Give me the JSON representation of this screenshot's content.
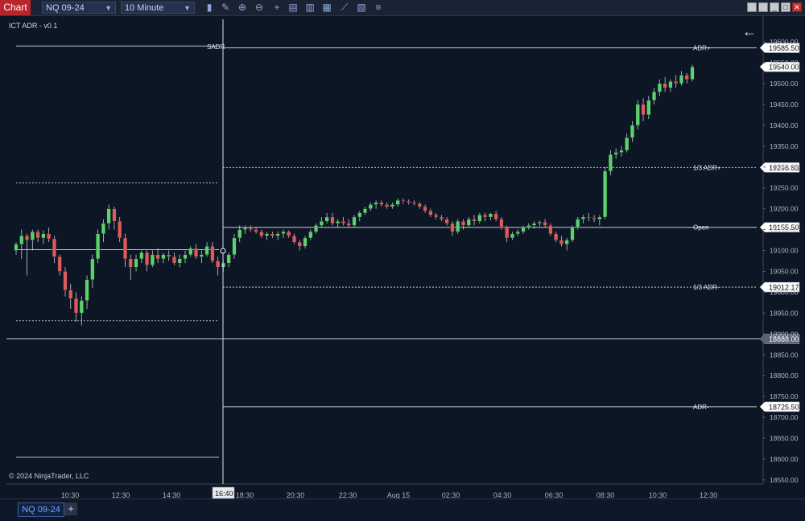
{
  "toolbar": {
    "chart_tab": "Chart",
    "instrument": "NQ 09-24",
    "interval": "10 Minute",
    "tools": [
      "bar-chart-icon",
      "pencil-icon",
      "zoom-in-icon",
      "zoom-out-icon",
      "crosshair-icon",
      "properties-icon",
      "data-box-icon",
      "indicators-icon",
      "strategies-icon",
      "chart-trader-icon",
      "more-icon"
    ]
  },
  "window_buttons": [
    "restore-icon",
    "tile-icon",
    "minimize-icon",
    "maximize-icon",
    "close-icon"
  ],
  "chart": {
    "indicator_label": "ICT ADR - v0.1",
    "copyright": "© 2024 NinjaTrader, LLC",
    "crosshair_time": "16:40",
    "sadr_label": "SADR",
    "time_labels": [
      "10:30",
      "12:30",
      "14:30",
      "18:30",
      "20:30",
      "22:30",
      "Aug 15",
      "02:30",
      "04:30",
      "06:30",
      "08:30",
      "10:30",
      "12:30"
    ],
    "price_ticks": [
      "19600.00",
      "19550.00",
      "19500.00",
      "19450.00",
      "19400.00",
      "19350.00",
      "19300.00",
      "19250.00",
      "19200.00",
      "19150.00",
      "19100.00",
      "19050.00",
      "19000.00",
      "18950.00",
      "18900.00",
      "18850.00",
      "18800.00",
      "18750.00",
      "18700.00",
      "18650.00",
      "18600.00",
      "18550.00"
    ],
    "levels": [
      {
        "name": "ADR+",
        "price": 19585.5,
        "label": "19585.50",
        "style": "solid",
        "color": "#c8ccd4",
        "show_name": true
      },
      {
        "name": "",
        "price": 19540.0,
        "label": "19540.00",
        "style": "none",
        "color": "#ffffff",
        "show_name": false
      },
      {
        "name": "1/3 ADR+",
        "price": 19298.83,
        "label": "19298.83",
        "style": "dashed",
        "color": "#c8ccd4",
        "show_name": true
      },
      {
        "name": "Open",
        "price": 19155.5,
        "label": "19155.50",
        "style": "solid",
        "color": "#c8ccd4",
        "show_name": true
      },
      {
        "name": "1/3 ADR-",
        "price": 19012.17,
        "label": "19012.17",
        "style": "dashed",
        "color": "#c8ccd4",
        "show_name": true
      },
      {
        "name": "",
        "price": 18888.0,
        "label": "18888.00",
        "style": "crosshair",
        "color": "#c8ccd4",
        "show_name": false
      },
      {
        "name": "ADR-",
        "price": 18725.5,
        "label": "18725.50",
        "style": "solid",
        "color": "#c8ccd4",
        "show_name": true
      }
    ],
    "prev_levels": {
      "top": 19590,
      "third_plus": 19262,
      "open": 19102,
      "third_minus": 18932,
      "bottom": 18605
    },
    "up_color": "#5bd36b",
    "down_color": "#e05a5a",
    "candles": [
      [
        19100,
        19120,
        19090,
        19115
      ],
      [
        19115,
        19150,
        19080,
        19135
      ],
      [
        19135,
        19140,
        19040,
        19125
      ],
      [
        19125,
        19150,
        19100,
        19145
      ],
      [
        19145,
        19150,
        19120,
        19130
      ],
      [
        19130,
        19148,
        19115,
        19140
      ],
      [
        19140,
        19155,
        19120,
        19128
      ],
      [
        19128,
        19135,
        19070,
        19085
      ],
      [
        19085,
        19090,
        19040,
        19050
      ],
      [
        19050,
        19060,
        18990,
        19005
      ],
      [
        19005,
        19020,
        18960,
        18985
      ],
      [
        18985,
        19000,
        18930,
        18950
      ],
      [
        18950,
        18990,
        18920,
        18980
      ],
      [
        18980,
        19040,
        18960,
        19030
      ],
      [
        19030,
        19090,
        19010,
        19080
      ],
      [
        19080,
        19150,
        19070,
        19140
      ],
      [
        19140,
        19175,
        19120,
        19165
      ],
      [
        19165,
        19210,
        19150,
        19200
      ],
      [
        19200,
        19205,
        19150,
        19170
      ],
      [
        19170,
        19180,
        19120,
        19130
      ],
      [
        19130,
        19140,
        19060,
        19080
      ],
      [
        19080,
        19090,
        19030,
        19060
      ],
      [
        19060,
        19090,
        19050,
        19080
      ],
      [
        19080,
        19100,
        19070,
        19095
      ],
      [
        19095,
        19100,
        19050,
        19065
      ],
      [
        19065,
        19100,
        19060,
        19090
      ],
      [
        19090,
        19105,
        19070,
        19080
      ],
      [
        19080,
        19095,
        19070,
        19090
      ],
      [
        19090,
        19100,
        19075,
        19085
      ],
      [
        19085,
        19095,
        19065,
        19070
      ],
      [
        19070,
        19090,
        19060,
        19080
      ],
      [
        19080,
        19100,
        19070,
        19090
      ],
      [
        19090,
        19110,
        19085,
        19105
      ],
      [
        19105,
        19115,
        19080,
        19085
      ],
      [
        19085,
        19100,
        19070,
        19090
      ],
      [
        19090,
        19120,
        19085,
        19110
      ],
      [
        19110,
        19120,
        19070,
        19075
      ],
      [
        19075,
        19085,
        19040,
        19060
      ],
      [
        19060,
        19075,
        19050,
        19070
      ],
      [
        19070,
        19095,
        19060,
        19090
      ],
      [
        19090,
        19140,
        19080,
        19130
      ],
      [
        19130,
        19160,
        19120,
        19150
      ],
      [
        19150,
        19160,
        19140,
        19155
      ],
      [
        19155,
        19160,
        19145,
        19150
      ],
      [
        19150,
        19155,
        19140,
        19145
      ],
      [
        19145,
        19150,
        19130,
        19135
      ],
      [
        19135,
        19145,
        19125,
        19140
      ],
      [
        19140,
        19145,
        19130,
        19135
      ],
      [
        19135,
        19145,
        19125,
        19140
      ],
      [
        19140,
        19150,
        19130,
        19145
      ],
      [
        19145,
        19148,
        19130,
        19135
      ],
      [
        19135,
        19140,
        19115,
        19120
      ],
      [
        19120,
        19125,
        19100,
        19110
      ],
      [
        19110,
        19135,
        19105,
        19130
      ],
      [
        19130,
        19150,
        19125,
        19145
      ],
      [
        19145,
        19165,
        19140,
        19160
      ],
      [
        19160,
        19180,
        19155,
        19170
      ],
      [
        19170,
        19190,
        19165,
        19180
      ],
      [
        19180,
        19190,
        19160,
        19165
      ],
      [
        19165,
        19175,
        19155,
        19170
      ],
      [
        19170,
        19180,
        19160,
        19165
      ],
      [
        19165,
        19175,
        19155,
        19160
      ],
      [
        19160,
        19185,
        19155,
        19180
      ],
      [
        19180,
        19195,
        19170,
        19190
      ],
      [
        19190,
        19205,
        19185,
        19200
      ],
      [
        19200,
        19215,
        19195,
        19210
      ],
      [
        19210,
        19220,
        19200,
        19215
      ],
      [
        19215,
        19220,
        19205,
        19210
      ],
      [
        19210,
        19215,
        19200,
        19205
      ],
      [
        19205,
        19215,
        19200,
        19210
      ],
      [
        19210,
        19225,
        19205,
        19220
      ],
      [
        19220,
        19225,
        19212,
        19218
      ],
      [
        19218,
        19222,
        19210,
        19215
      ],
      [
        19215,
        19220,
        19208,
        19212
      ],
      [
        19212,
        19216,
        19200,
        19205
      ],
      [
        19205,
        19210,
        19190,
        19195
      ],
      [
        19195,
        19200,
        19180,
        19185
      ],
      [
        19185,
        19190,
        19175,
        19180
      ],
      [
        19180,
        19185,
        19170,
        19175
      ],
      [
        19175,
        19180,
        19160,
        19165
      ],
      [
        19165,
        19170,
        19135,
        19145
      ],
      [
        19145,
        19175,
        19140,
        19170
      ],
      [
        19170,
        19175,
        19150,
        19160
      ],
      [
        19160,
        19180,
        19155,
        19175
      ],
      [
        19175,
        19185,
        19160,
        19170
      ],
      [
        19170,
        19190,
        19165,
        19185
      ],
      [
        19185,
        19190,
        19170,
        19180
      ],
      [
        19180,
        19190,
        19172,
        19188
      ],
      [
        19188,
        19195,
        19170,
        19175
      ],
      [
        19175,
        19180,
        19150,
        19155
      ],
      [
        19155,
        19160,
        19120,
        19130
      ],
      [
        19130,
        19145,
        19125,
        19140
      ],
      [
        19140,
        19150,
        19135,
        19145
      ],
      [
        19145,
        19160,
        19140,
        19155
      ],
      [
        19155,
        19165,
        19150,
        19160
      ],
      [
        19160,
        19170,
        19152,
        19165
      ],
      [
        19165,
        19172,
        19158,
        19168
      ],
      [
        19168,
        19175,
        19155,
        19160
      ],
      [
        19160,
        19165,
        19135,
        19140
      ],
      [
        19140,
        19145,
        19120,
        19125
      ],
      [
        19125,
        19135,
        19110,
        19115
      ],
      [
        19115,
        19130,
        19100,
        19125
      ],
      [
        19125,
        19160,
        19120,
        19155
      ],
      [
        19155,
        19180,
        19150,
        19175
      ],
      [
        19175,
        19185,
        19165,
        19180
      ],
      [
        19180,
        19190,
        19170,
        19178
      ],
      [
        19178,
        19185,
        19168,
        19175
      ],
      [
        19175,
        19185,
        19160,
        19180
      ],
      [
        19180,
        19300,
        19175,
        19290
      ],
      [
        19290,
        19340,
        19280,
        19330
      ],
      [
        19330,
        19345,
        19320,
        19335
      ],
      [
        19335,
        19350,
        19325,
        19340
      ],
      [
        19340,
        19380,
        19335,
        19370
      ],
      [
        19370,
        19410,
        19360,
        19400
      ],
      [
        19400,
        19460,
        19390,
        19450
      ],
      [
        19450,
        19465,
        19410,
        19425
      ],
      [
        19425,
        19470,
        19415,
        19460
      ],
      [
        19460,
        19490,
        19450,
        19480
      ],
      [
        19480,
        19510,
        19470,
        19500
      ],
      [
        19500,
        19515,
        19480,
        19490
      ],
      [
        19490,
        19510,
        19480,
        19505
      ],
      [
        19505,
        19520,
        19490,
        19500
      ],
      [
        19500,
        19530,
        19495,
        19520
      ],
      [
        19520,
        19525,
        19500,
        19510
      ],
      [
        19510,
        19545,
        19505,
        19540
      ]
    ]
  }
}
